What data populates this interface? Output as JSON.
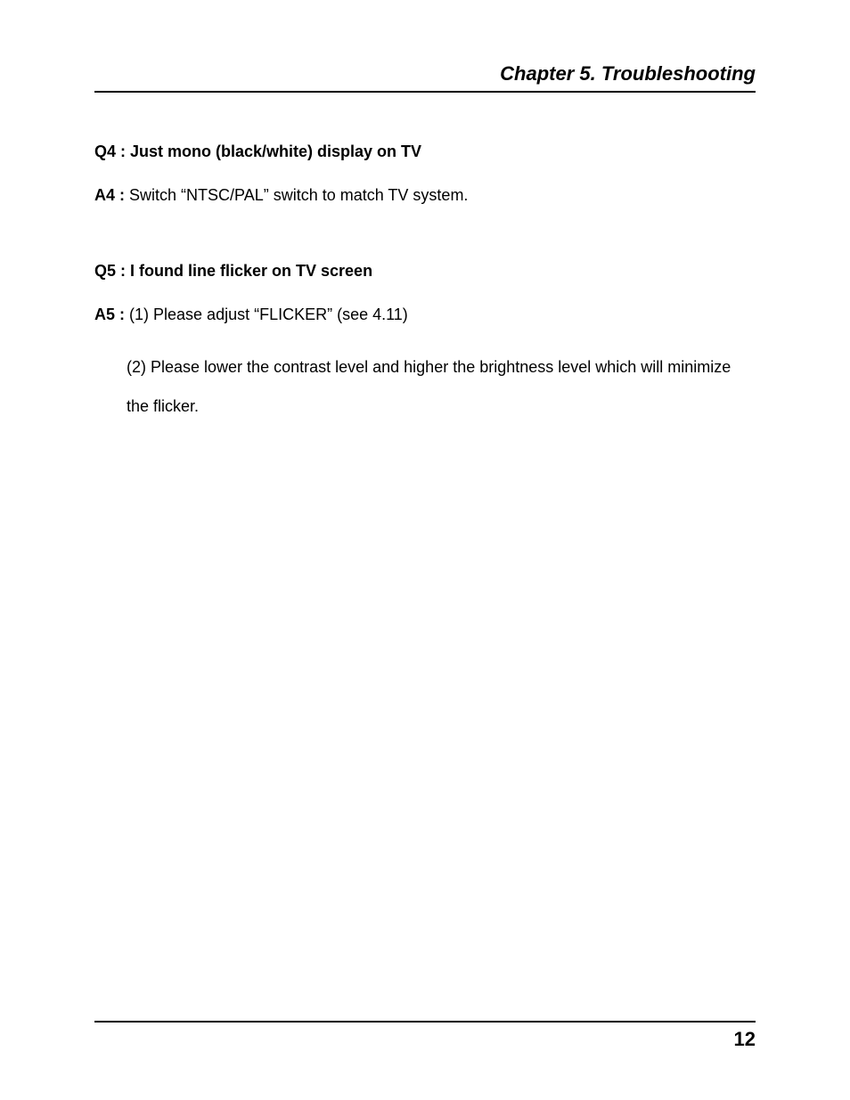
{
  "chapter": {
    "title": "Chapter 5. Troubleshooting"
  },
  "qa4": {
    "q_label": "Q4 : Just mono (black/white) display on TV",
    "a_label": "A4 :",
    "a_text": " Switch “NTSC/PAL” switch to match TV system."
  },
  "qa5": {
    "q_label": "Q5 : I found line flicker on TV screen",
    "a_label": "A5 :",
    "a_text1": " (1) Please adjust “FLICKER” (see 4.11)",
    "a_text2": "(2) Please lower the contrast level and higher the brightness level which will minimize the flicker."
  },
  "page_number": "12"
}
